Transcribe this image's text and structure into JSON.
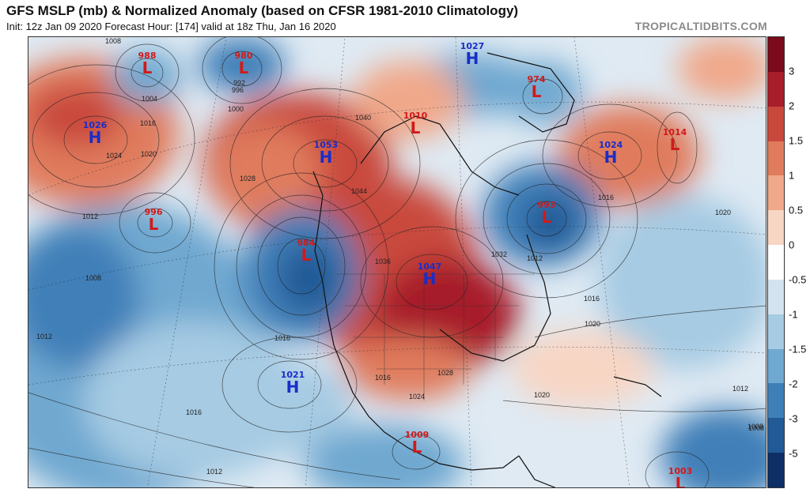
{
  "header": {
    "title": "GFS MSLP (mb) & Normalized Anomaly (based on CFSR 1981-2010 Climatology)",
    "subtitle": "Init: 12z Jan 09 2020   Forecast Hour: [174]   valid at 18z Thu, Jan 16 2020",
    "credit": "TROPICALTIDBITS.COM"
  },
  "colorbar": {
    "labels": [
      "3",
      "2",
      "1.5",
      "1",
      "0.5",
      "0",
      "-0.5",
      "-1",
      "-1.5",
      "-2",
      "-3",
      "-5"
    ],
    "colors": [
      "#7a0a1c",
      "#a71d2a",
      "#c9483c",
      "#e07c5d",
      "#f0a88a",
      "#f8d6c4",
      "#ffffff",
      "#d3e4f0",
      "#a6cbe3",
      "#6fa8d0",
      "#3f7fb8",
      "#215a96",
      "#0d2f66"
    ]
  },
  "systems": [
    {
      "type": "L",
      "pressure": "988"
    },
    {
      "type": "L",
      "pressure": "980"
    },
    {
      "type": "H",
      "pressure": "1027"
    },
    {
      "type": "L",
      "pressure": "974"
    },
    {
      "type": "H",
      "pressure": "1026"
    },
    {
      "type": "L",
      "pressure": "1010"
    },
    {
      "type": "H",
      "pressure": "1053"
    },
    {
      "type": "H",
      "pressure": "1024"
    },
    {
      "type": "L",
      "pressure": "1014"
    },
    {
      "type": "L",
      "pressure": "996"
    },
    {
      "type": "L",
      "pressure": "993"
    },
    {
      "type": "L",
      "pressure": "984"
    },
    {
      "type": "H",
      "pressure": "1047"
    },
    {
      "type": "H",
      "pressure": "1021"
    },
    {
      "type": "L",
      "pressure": "1009"
    },
    {
      "type": "L",
      "pressure": "1003"
    }
  ],
  "isobar_labels": [
    "1008",
    "1004",
    "1016",
    "1020",
    "1024",
    "1028",
    "1012",
    "1000",
    "996",
    "992",
    "1040",
    "1044",
    "1036",
    "1032",
    "1008",
    "1016",
    "1012",
    "1020",
    "1016",
    "1012",
    "1008",
    "1016",
    "1012",
    "1020",
    "1024",
    "1028",
    "1016",
    "1020",
    "1016",
    "1012",
    "1008"
  ]
}
